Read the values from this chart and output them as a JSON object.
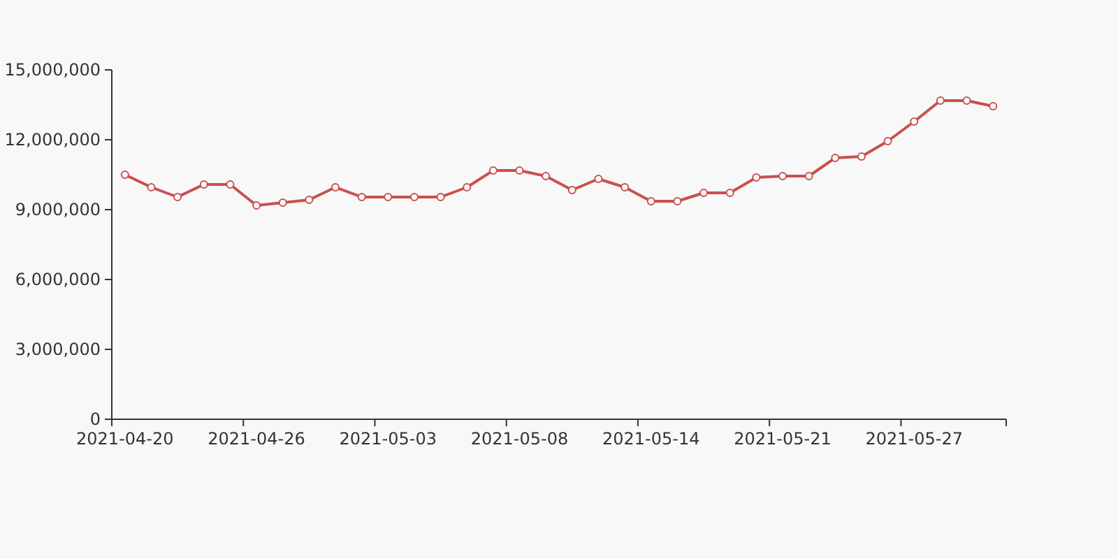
{
  "chart_data": {
    "type": "line",
    "categories": [
      "2021-04-20",
      null,
      null,
      null,
      null,
      "2021-04-26",
      null,
      null,
      null,
      null,
      "2021-05-03",
      null,
      null,
      null,
      null,
      "2021-05-08",
      null,
      null,
      null,
      null,
      "2021-05-14",
      null,
      null,
      null,
      null,
      "2021-05-21",
      null,
      null,
      null,
      null,
      "2021-05-27",
      null,
      null,
      null
    ],
    "series": [
      {
        "color": "#c9504f",
        "values": [
          10500000,
          9960000,
          9540000,
          10080000,
          10080000,
          9180000,
          9300000,
          9420000,
          9960000,
          9540000,
          9540000,
          9540000,
          9540000,
          9960000,
          10680000,
          10680000,
          10440000,
          9840000,
          10320000,
          9960000,
          9360000,
          9360000,
          9720000,
          9720000,
          10380000,
          10440000,
          10440000,
          11220000,
          11280000,
          11940000,
          12780000,
          13680000,
          13680000,
          13440000
        ]
      }
    ],
    "ylim": [
      0,
      15000000
    ],
    "yticks": [
      {
        "value": 0,
        "label": "0"
      },
      {
        "value": 3000000,
        "label": "3,000,000"
      },
      {
        "value": 6000000,
        "label": "6,000,000"
      },
      {
        "value": 9000000,
        "label": "9,000,000"
      },
      {
        "value": 12000000,
        "label": "12,000,000"
      },
      {
        "value": 15000000,
        "label": "15,000,000"
      }
    ],
    "grid": false,
    "marker": "circle",
    "line_style": "solid"
  }
}
